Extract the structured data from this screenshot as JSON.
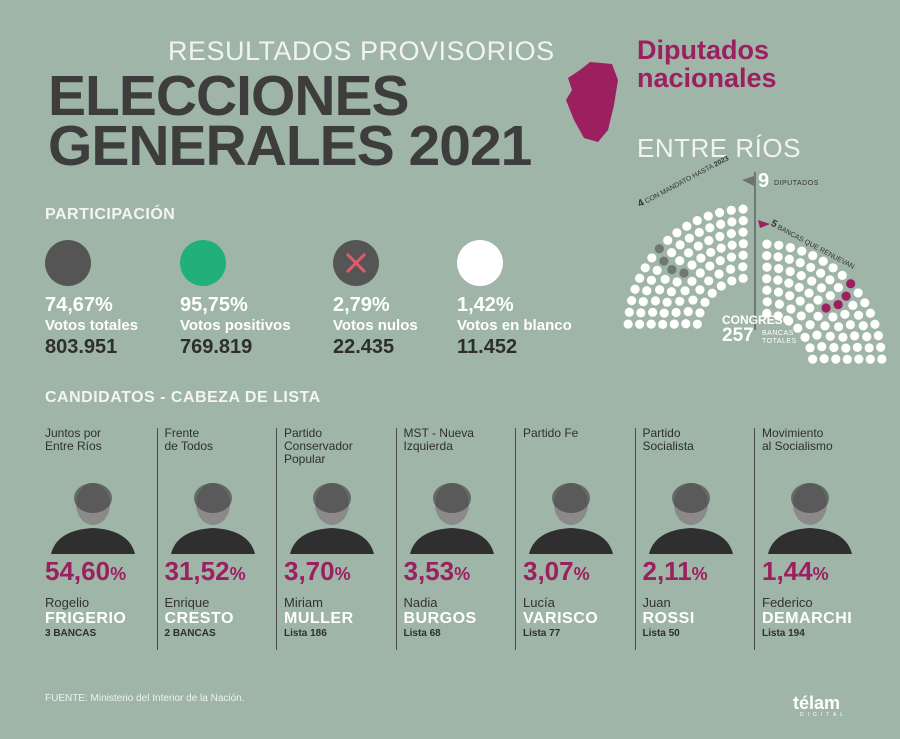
{
  "header": {
    "subtitle": "RESULTADOS PROVISORIOS",
    "title_line1": "ELECCIONES",
    "title_line2": "GENERALES 2021",
    "chamber_line1": "Diputados",
    "chamber_line2": "nacionales",
    "province": "ENTRE RÍOS"
  },
  "colors": {
    "background": "#9fb5a7",
    "accent": "#9c1f5f",
    "dark": "#3d3d3d"
  },
  "hemicycle": {
    "total_label": "CONGRESO",
    "total": "257",
    "total_sub1": "BANCAS",
    "total_sub2": "TOTALES",
    "deputies_num": "9",
    "deputies_label": "DIPUTADOS",
    "mandate_num": "4",
    "mandate_label": "CON MANDATO HASTA",
    "mandate_year": "2023",
    "renew_num": "5",
    "renew_label": "BANCAS QUE RENUEVAN",
    "seats_total": 257,
    "seats_mandate": 4,
    "seats_renew": 5
  },
  "participation": {
    "title": "PARTICIPACIÓN",
    "items": [
      {
        "pct": "74,67%",
        "label": "Votos totales",
        "votes": "803.951",
        "color": "#555555",
        "icon": "circle"
      },
      {
        "pct": "95,75%",
        "label": "Votos positivos",
        "votes": "769.819",
        "color": "#21b07a",
        "icon": "circle"
      },
      {
        "pct": "2,79%",
        "label": "Votos nulos",
        "votes": "22.435",
        "color": "#555555",
        "icon": "x-mark"
      },
      {
        "pct": "1,42%",
        "label": "Votos en blanco",
        "votes": "11.452",
        "color": "#ffffff",
        "icon": "circle"
      }
    ]
  },
  "candidates": {
    "title": "CANDIDATOS - CABEZA DE LISTA",
    "items": [
      {
        "party": "Juntos por\nEntre Ríos",
        "pct": "54,60",
        "first": "Rogelio",
        "last": "FRIGERIO",
        "extra": "3 BANCAS"
      },
      {
        "party": "Frente\nde Todos",
        "pct": "31,52",
        "first": "Enrique",
        "last": "CRESTO",
        "extra": "2 BANCAS"
      },
      {
        "party": "Partido\nConservador\nPopular",
        "pct": "3,70",
        "first": "Miriam",
        "last": "MULLER",
        "extra": "Lista 186"
      },
      {
        "party": "MST - Nueva\nIzquierda",
        "pct": "3,53",
        "first": "Nadia",
        "last": "BURGOS",
        "extra": "Lista 68"
      },
      {
        "party": "Partido Fe",
        "pct": "3,07",
        "first": "Lucía",
        "last": "VARISCO",
        "extra": "Lista 77"
      },
      {
        "party": "Partido\nSocialista",
        "pct": "2,11",
        "first": "Juan",
        "last": "ROSSI",
        "extra": "Lista 50"
      },
      {
        "party": "Movimiento\nal Socialismo",
        "pct": "1,44",
        "first": "Federico",
        "last": "DEMARCHI",
        "extra": "Lista 194"
      }
    ],
    "pct_sign": "%"
  },
  "footer": {
    "source": "FUENTE: Ministerio del Interior de la Nación.",
    "logo": "télam",
    "logo_sub": "DIGITAL"
  }
}
